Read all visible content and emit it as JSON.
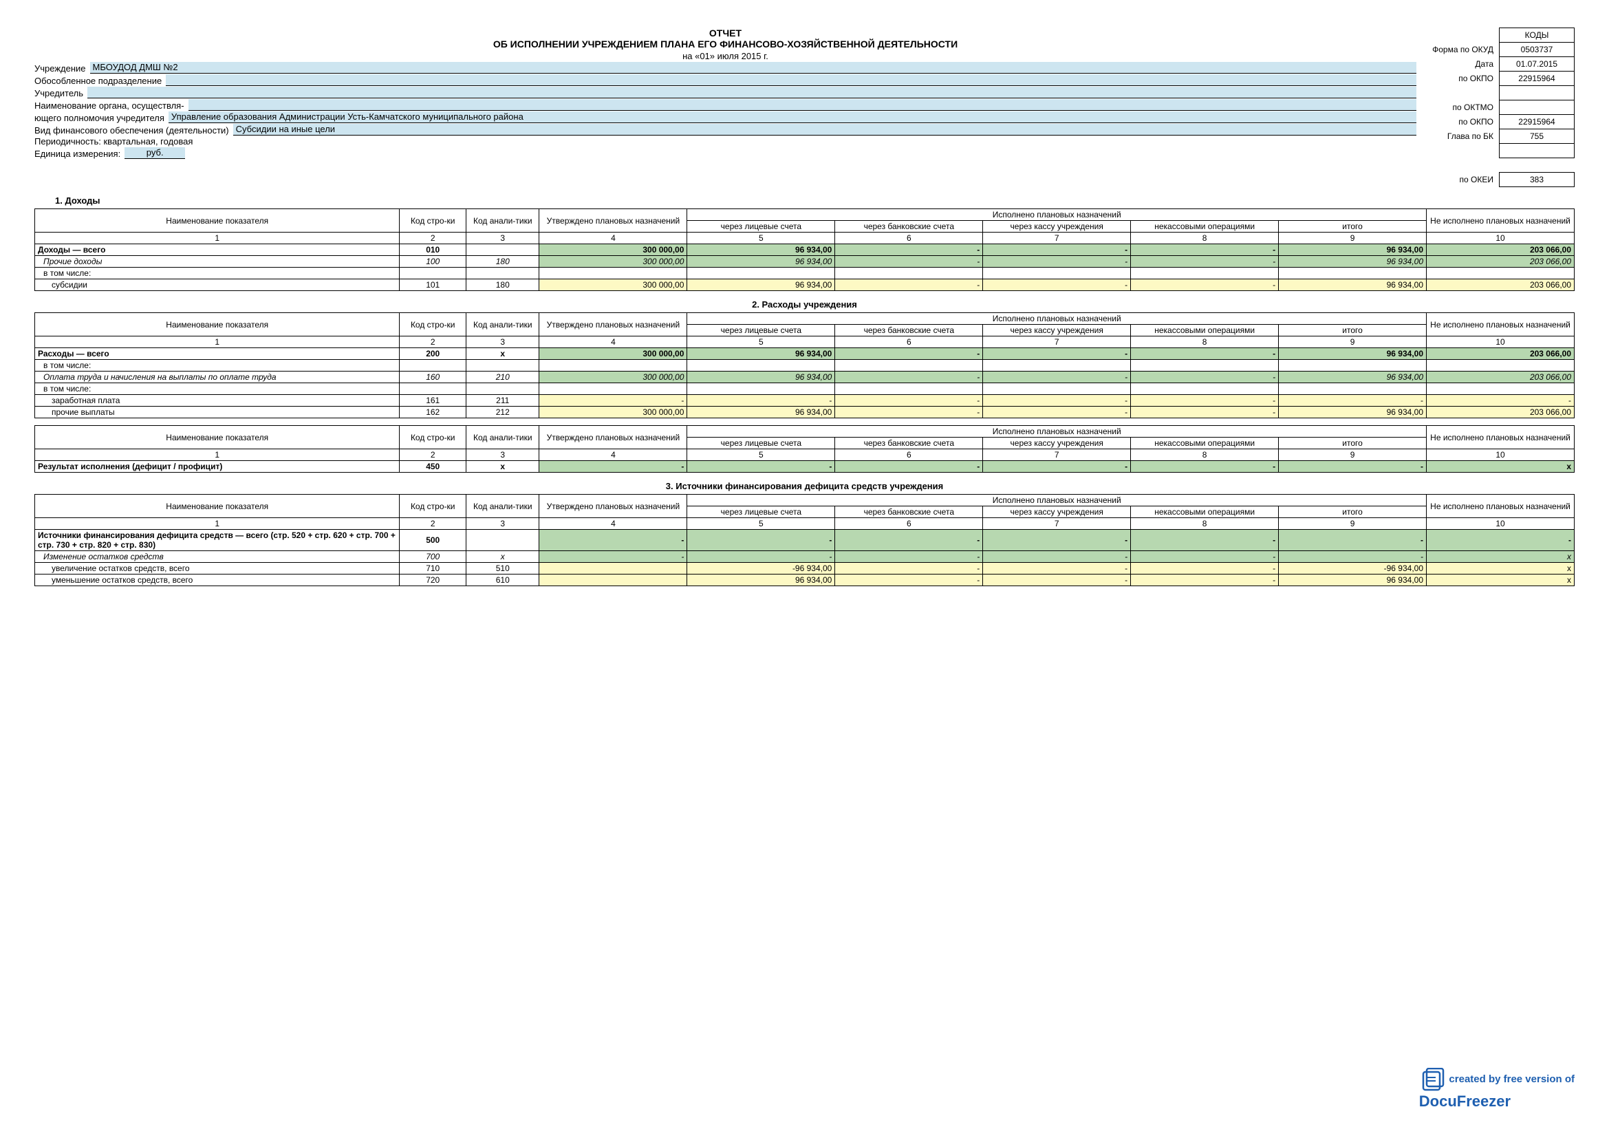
{
  "title": "ОТЧЕТ",
  "subtitle": "ОБ ИСПОЛНЕНИИ УЧРЕЖДЕНИЕМ ПЛАНА ЕГО ФИНАНСОВО-ХОЗЯЙСТВЕННОЙ ДЕЯТЕЛЬНОСТИ",
  "date_line": "на  «01» июля 2015 г.",
  "codes_header": "КОДЫ",
  "codes": {
    "okud_label": "Форма по ОКУД",
    "okud": "0503737",
    "date_label": "Дата",
    "date": "01.07.2015",
    "okpo_label": "по ОКПО",
    "okpo": "22915964",
    "oktmo_label": "по ОКТМО",
    "oktmo": "",
    "okpo2_label": "по ОКПО",
    "okpo2": "22915964",
    "glava_label": "Глава по БК",
    "glava": "755",
    "blank1": "",
    "blank2": "",
    "okei_label": "по ОКЕИ",
    "okei": "383"
  },
  "info": {
    "uchr_label": "Учреждение",
    "uchr": "МБОУДОД ДМШ №2",
    "podr_label": "Обособленное подразделение",
    "podr": "",
    "uchred_label": "Учредитель",
    "uchred": "",
    "organ_label1": "Наименование органа, осуществля-",
    "organ_label2": "ющего полномочия учредителя",
    "organ": "Управление образования Администрации Усть-Камчатского муниципального района",
    "vid_label": "Вид финансового обеспечения (деятельности)",
    "vid": "Субсидии на иные цели",
    "period_label": "Периодичность: квартальная, годовая",
    "unit_label": "Единица измерения:",
    "unit_val": "руб."
  },
  "headers": {
    "name": "Наименование показателя",
    "code1": "Код стро-ки",
    "code2": "Код анали-тики",
    "approved": "Утверждено плановых назначений",
    "executed": "Исполнено плановых назначений",
    "c5": "через лицевые счета",
    "c6": "через банковские счета",
    "c7": "через кассу учреждения",
    "c8": "некассовыми операциями",
    "c9": "итого",
    "c10": "Не исполнено плановых назначений",
    "n1": "1",
    "n2": "2",
    "n3": "3",
    "n4": "4",
    "n5": "5",
    "n6": "6",
    "n7": "7",
    "n8": "8",
    "n9": "9",
    "n10": "10"
  },
  "s1": {
    "title": "1. Доходы",
    "rows": [
      {
        "name": "Доходы — всего",
        "c2": "010",
        "c3": "",
        "c4": "300 000,00",
        "c5": "96 934,00",
        "c6": "-",
        "c7": "-",
        "c8": "-",
        "c9": "96 934,00",
        "c10": "203 066,00",
        "bold": true,
        "bg": "green"
      },
      {
        "name": "Прочие доходы",
        "c2": "100",
        "c3": "180",
        "c4": "300 000,00",
        "c5": "96 934,00",
        "c6": "-",
        "c7": "-",
        "c8": "-",
        "c9": "96 934,00",
        "c10": "203 066,00",
        "ital": true,
        "bg": "green",
        "pl": 1
      },
      {
        "name": "в том числе:",
        "c2": "",
        "c3": "",
        "c4": "",
        "c5": "",
        "c6": "",
        "c7": "",
        "c8": "",
        "c9": "",
        "c10": "",
        "nobg": true,
        "pl": 1
      },
      {
        "name": "субсидии",
        "c2": "101",
        "c3": "180",
        "c4": "300 000,00",
        "c5": "96 934,00",
        "c6": "-",
        "c7": "-",
        "c8": "-",
        "c9": "96 934,00",
        "c10": "203 066,00",
        "bg": "yellow",
        "pl": 2
      }
    ]
  },
  "s2": {
    "title": "2. Расходы учреждения",
    "rows": [
      {
        "name": "Расходы — всего",
        "c2": "200",
        "c3": "х",
        "c4": "300 000,00",
        "c5": "96 934,00",
        "c6": "-",
        "c7": "-",
        "c8": "-",
        "c9": "96 934,00",
        "c10": "203 066,00",
        "bold": true,
        "bg": "green"
      },
      {
        "name": "в том числе:",
        "c2": "",
        "c3": "",
        "c4": "",
        "c5": "",
        "c6": "",
        "c7": "",
        "c8": "",
        "c9": "",
        "c10": "",
        "nobg": true,
        "pl": 1
      },
      {
        "name": "Оплата труда и начисления на выплаты по оплате труда",
        "c2": "160",
        "c3": "210",
        "c4": "300 000,00",
        "c5": "96 934,00",
        "c6": "-",
        "c7": "-",
        "c8": "-",
        "c9": "96 934,00",
        "c10": "203 066,00",
        "ital": true,
        "bg": "green",
        "pl": 1
      },
      {
        "name": "в том числе:",
        "c2": "",
        "c3": "",
        "c4": "",
        "c5": "",
        "c6": "",
        "c7": "",
        "c8": "",
        "c9": "",
        "c10": "",
        "nobg": true,
        "pl": 1
      },
      {
        "name": "заработная плата",
        "c2": "161",
        "c3": "211",
        "c4": "-",
        "c5": "-",
        "c6": "-",
        "c7": "-",
        "c8": "-",
        "c9": "-",
        "c10": "-",
        "bg": "yellow",
        "pl": 2
      },
      {
        "name": "прочие выплаты",
        "c2": "162",
        "c3": "212",
        "c4": "300 000,00",
        "c5": "96 934,00",
        "c6": "-",
        "c7": "-",
        "c8": "-",
        "c9": "96 934,00",
        "c10": "203 066,00",
        "bg": "yellow",
        "pl": 2
      }
    ]
  },
  "s2b": {
    "rows": [
      {
        "name": "Результат исполнения  (дефицит / профицит)",
        "c2": "450",
        "c3": "х",
        "c4": "-",
        "c5": "-",
        "c6": "-",
        "c7": "-",
        "c8": "-",
        "c9": "-",
        "c10": "х",
        "bold": true,
        "bg": "green"
      }
    ]
  },
  "s3": {
    "title": "3. Источники финансирования дефицита средств учреждения",
    "rows": [
      {
        "name": "Источники финансирования дефицита средств — всего (стр. 520 + стр. 620 + стр. 700 + стр. 730 + стр. 820 + стр. 830)",
        "c2": "500",
        "c3": "",
        "c4": "-",
        "c5": "-",
        "c6": "-",
        "c7": "-",
        "c8": "-",
        "c9": "-",
        "c10": "-",
        "bold": true,
        "bg": "green"
      },
      {
        "name": "Изменение остатков средств",
        "c2": "700",
        "c3": "х",
        "c4": "-",
        "c5": "-",
        "c6": "-",
        "c7": "-",
        "c8": "-",
        "c9": "-",
        "c10": "х",
        "ital": true,
        "bg": "green",
        "pl": 1
      },
      {
        "name": "увеличение остатков средств, всего",
        "c2": "710",
        "c3": "510",
        "c4": "",
        "c5": "-96 934,00",
        "c6": "-",
        "c7": "-",
        "c8": "-",
        "c9": "-96 934,00",
        "c10": "х",
        "bg": "yellow",
        "pl": 2
      },
      {
        "name": "уменьшение остатков средств, всего",
        "c2": "720",
        "c3": "610",
        "c4": "",
        "c5": "96 934,00",
        "c6": "-",
        "c7": "-",
        "c8": "-",
        "c9": "96 934,00",
        "c10": "х",
        "bg": "yellow",
        "pl": 2
      }
    ]
  },
  "watermark": {
    "line1": "created by free version of",
    "line2": "DocuFreezer"
  }
}
